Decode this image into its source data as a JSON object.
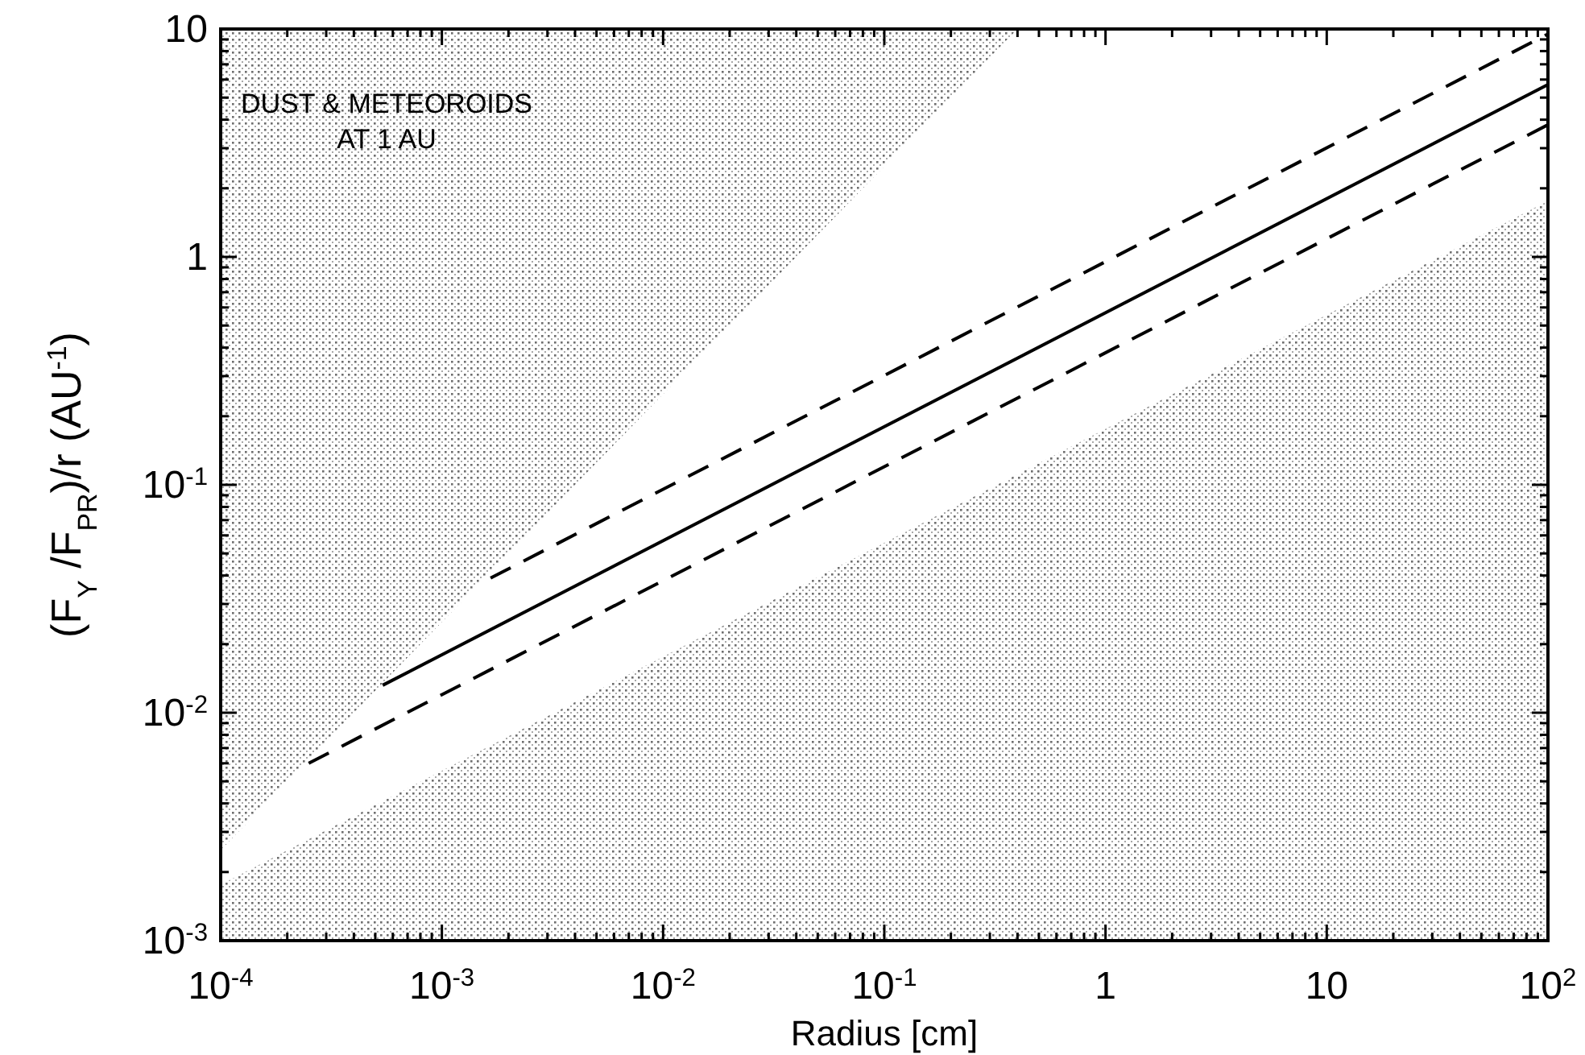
{
  "chart_data": {
    "type": "line",
    "log": "xy",
    "grid": false,
    "legend": false,
    "xlabel": "Radius [cm]",
    "ylabel": "(F$_{Y}$ /F$_{PR}$)/r  (AU$^{-1}$)",
    "annotations": [
      "DUST & METEOROIDS\nAT 1 AU"
    ],
    "xlim": [
      0.0001,
      100
    ],
    "ylim": [
      0.001,
      10
    ],
    "xticks": [
      {
        "value": 0.0001,
        "label": "10$^{-4}$"
      },
      {
        "value": 0.001,
        "label": "10$^{-3}$"
      },
      {
        "value": 0.01,
        "label": "10$^{-2}$"
      },
      {
        "value": 0.1,
        "label": "10$^{-1}$"
      },
      1,
      10,
      {
        "value": 100,
        "label": "10$^{2}$"
      },
      {
        "value": 0.0002,
        "label": null
      },
      {
        "value": 0.0003,
        "label": null
      },
      {
        "value": 0.0004,
        "label": null
      },
      {
        "value": 0.0005,
        "label": null
      },
      {
        "value": 0.0006,
        "label": null
      },
      {
        "value": 0.0007,
        "label": null
      },
      {
        "value": 0.0008,
        "label": null
      },
      {
        "value": 0.0009,
        "label": null
      },
      {
        "value": 0.002,
        "label": null
      },
      {
        "value": 0.003,
        "label": null
      },
      {
        "value": 0.004,
        "label": null
      },
      {
        "value": 0.005,
        "label": null
      },
      {
        "value": 0.006,
        "label": null
      },
      {
        "value": 0.007,
        "label": null
      },
      {
        "value": 0.008,
        "label": null
      },
      {
        "value": 0.009,
        "label": null
      },
      {
        "value": 0.02,
        "label": null
      },
      {
        "value": 0.03,
        "label": null
      },
      {
        "value": 0.04,
        "label": null
      },
      {
        "value": 0.05,
        "label": null
      },
      {
        "value": 0.06,
        "label": null
      },
      {
        "value": 0.07,
        "label": null
      },
      {
        "value": 0.08,
        "label": null
      },
      {
        "value": 0.09,
        "label": null
      },
      {
        "value": 0.2,
        "label": null
      },
      {
        "value": 0.3,
        "label": null
      },
      {
        "value": 0.4,
        "label": null
      },
      {
        "value": 0.5,
        "label": null
      },
      {
        "value": 0.6,
        "label": null
      },
      {
        "value": 0.7,
        "label": null
      },
      {
        "value": 0.8,
        "label": null
      },
      {
        "value": 0.9,
        "label": null
      },
      {
        "value": 2,
        "label": null
      },
      {
        "value": 3,
        "label": null
      },
      {
        "value": 4,
        "label": null
      },
      {
        "value": 5,
        "label": null
      },
      {
        "value": 6,
        "label": null
      },
      {
        "value": 7,
        "label": null
      },
      {
        "value": 8,
        "label": null
      },
      {
        "value": 9,
        "label": null
      },
      {
        "value": 20,
        "label": null
      },
      {
        "value": 30,
        "label": null
      },
      {
        "value": 40,
        "label": null
      },
      {
        "value": 50,
        "label": null
      },
      {
        "value": 60,
        "label": null
      },
      {
        "value": 70,
        "label": null
      },
      {
        "value": 80,
        "label": null
      },
      {
        "value": 90,
        "label": null
      }
    ],
    "yticks": [
      {
        "value": 0.001,
        "label": "10$^{-3}$"
      },
      {
        "value": 0.01,
        "label": "10$^{-2}$"
      },
      {
        "value": 0.1,
        "label": "10$^{-1}$"
      },
      1,
      10,
      {
        "value": 0.002,
        "label": null
      },
      {
        "value": 0.003,
        "label": null
      },
      {
        "value": 0.004,
        "label": null
      },
      {
        "value": 0.005,
        "label": null
      },
      {
        "value": 0.006,
        "label": null
      },
      {
        "value": 0.007,
        "label": null
      },
      {
        "value": 0.008,
        "label": null
      },
      {
        "value": 0.009,
        "label": null
      },
      {
        "value": 0.02,
        "label": null
      },
      {
        "value": 0.03,
        "label": null
      },
      {
        "value": 0.04,
        "label": null
      },
      {
        "value": 0.05,
        "label": null
      },
      {
        "value": 0.06,
        "label": null
      },
      {
        "value": 0.07,
        "label": null
      },
      {
        "value": 0.08,
        "label": null
      },
      {
        "value": 0.09,
        "label": null
      },
      {
        "value": 0.2,
        "label": null
      },
      {
        "value": 0.3,
        "label": null
      },
      {
        "value": 0.4,
        "label": null
      },
      {
        "value": 0.5,
        "label": null
      },
      {
        "value": 0.6,
        "label": null
      },
      {
        "value": 0.7,
        "label": null
      },
      {
        "value": 0.8,
        "label": null
      },
      {
        "value": 0.9,
        "label": null
      },
      {
        "value": 2,
        "label": null
      },
      {
        "value": 3,
        "label": null
      },
      {
        "value": 4,
        "label": null
      },
      {
        "value": 5,
        "label": null
      },
      {
        "value": 6,
        "label": null
      },
      {
        "value": 7,
        "label": null
      },
      {
        "value": 8,
        "label": null
      },
      {
        "value": 9,
        "label": null
      }
    ],
    "series": [
      {
        "type": "area",
        "color": "#6e6e6e",
        "x": [
          0.0001,
          0.4
        ],
        "values": [
          0.0025,
          10
        ]
      },
      {
        "type": "area",
        "color": "#6e6e6e",
        "x": [
          0.0001,
          100
        ],
        "values": [
          0.00176,
          1.76
        ]
      },
      {
        "type": "line",
        "color": "#000000",
        "line_style": "dashed",
        "x": [
          0.00166,
          100
        ],
        "values": [
          0.039,
          9.5
        ]
      },
      {
        "type": "line",
        "color": "#000000",
        "line_style": "solid",
        "x": [
          0.00054,
          100
        ],
        "values": [
          0.0132,
          5.7
        ]
      },
      {
        "type": "line",
        "color": "#000000",
        "line_style": "dashed",
        "x": [
          0.00025,
          100
        ],
        "values": [
          0.006,
          3.8
        ]
      }
    ]
  }
}
